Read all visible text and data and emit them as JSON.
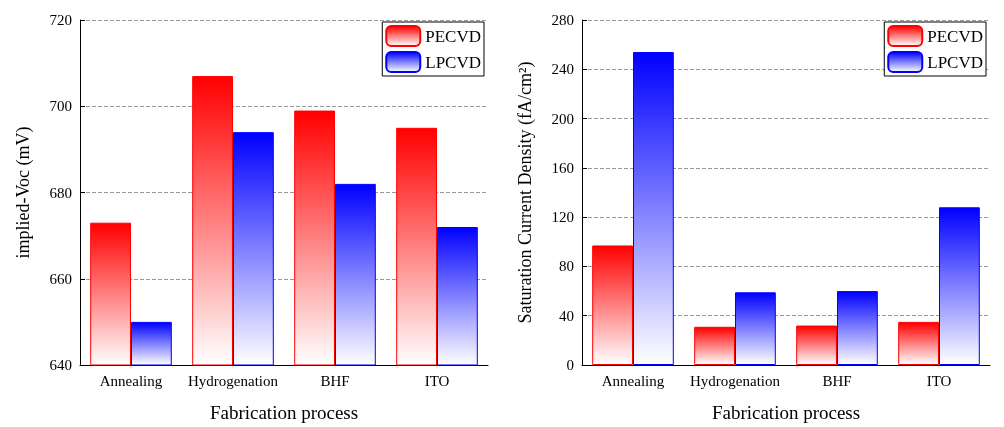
{
  "chart_data": [
    {
      "type": "bar",
      "xlabel": "Fabrication process",
      "ylabel": "implied-Voc (mV)",
      "categories": [
        "Annealing",
        "Hydrogenation",
        "BHF",
        "ITO"
      ],
      "series": [
        {
          "name": "PECVD",
          "color": "#ff0000",
          "values": [
            673,
            707,
            699,
            695
          ]
        },
        {
          "name": "LPCVD",
          "color": "#0000ff",
          "values": [
            650,
            694,
            682,
            672
          ]
        }
      ],
      "ylim": [
        640,
        720
      ],
      "yticks": [
        640,
        660,
        680,
        700,
        720
      ],
      "grid": "y",
      "legend": "top right"
    },
    {
      "type": "bar",
      "xlabel": "Fabrication process",
      "ylabel": "Saturation Current Density (fA/cm²)",
      "categories": [
        "Annealing",
        "Hydrogenation",
        "BHF",
        "ITO"
      ],
      "series": [
        {
          "name": "PECVD",
          "color": "#ff0000",
          "values": [
            97,
            31,
            32,
            35
          ]
        },
        {
          "name": "LPCVD",
          "color": "#0000ff",
          "values": [
            254,
            59,
            60,
            128
          ]
        }
      ],
      "ylim": [
        0,
        280
      ],
      "yticks": [
        0,
        40,
        80,
        120,
        160,
        200,
        240,
        280
      ],
      "grid": "y",
      "legend": "top right"
    }
  ]
}
